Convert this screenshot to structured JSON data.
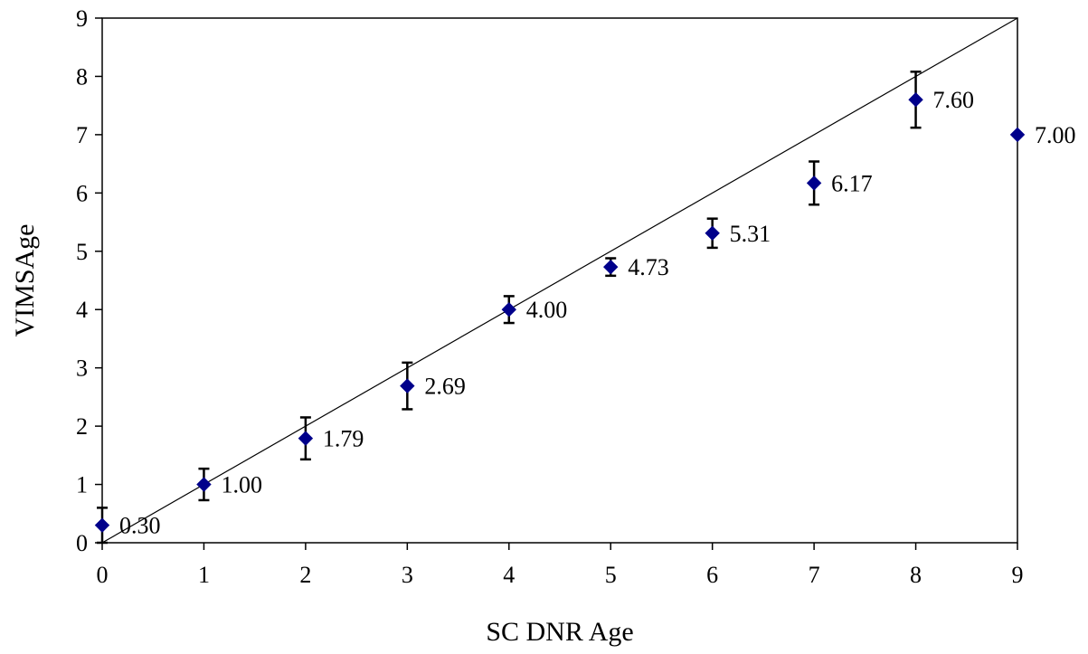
{
  "chart_data": {
    "type": "scatter",
    "xlabel": "SC DNR Age",
    "ylabel": "VIMSAge",
    "xlim": [
      0,
      9
    ],
    "ylim": [
      0,
      9
    ],
    "xticks": [
      "0",
      "1",
      "2",
      "3",
      "4",
      "5",
      "6",
      "7",
      "8",
      "9"
    ],
    "yticks": [
      "0",
      "1",
      "2",
      "3",
      "4",
      "5",
      "6",
      "7",
      "8",
      "9"
    ],
    "grid": false,
    "legend": "none",
    "marker": "diamond",
    "marker_color": "#00008B",
    "reference_line": {
      "x": [
        0,
        9
      ],
      "y": [
        0,
        9
      ]
    },
    "series": [
      {
        "points": [
          {
            "x": 0,
            "y": 0.3,
            "label": "0.30",
            "err_low": 0.0,
            "err_high": 0.6
          },
          {
            "x": 1,
            "y": 1.0,
            "label": "1.00",
            "err_low": 0.73,
            "err_high": 1.27
          },
          {
            "x": 2,
            "y": 1.79,
            "label": "1.79",
            "err_low": 1.43,
            "err_high": 2.15
          },
          {
            "x": 3,
            "y": 2.69,
            "label": "2.69",
            "err_low": 2.29,
            "err_high": 3.09
          },
          {
            "x": 4,
            "y": 4.0,
            "label": "4.00",
            "err_low": 3.77,
            "err_high": 4.23
          },
          {
            "x": 5,
            "y": 4.73,
            "label": "4.73",
            "err_low": 4.58,
            "err_high": 4.88
          },
          {
            "x": 6,
            "y": 5.31,
            "label": "5.31",
            "err_low": 5.06,
            "err_high": 5.56
          },
          {
            "x": 7,
            "y": 6.17,
            "label": "6.17",
            "err_low": 5.8,
            "err_high": 6.54
          },
          {
            "x": 8,
            "y": 7.6,
            "label": "7.60",
            "err_low": 7.12,
            "err_high": 8.08
          },
          {
            "x": 9,
            "y": 7.0,
            "label": "7.00"
          }
        ]
      }
    ]
  }
}
